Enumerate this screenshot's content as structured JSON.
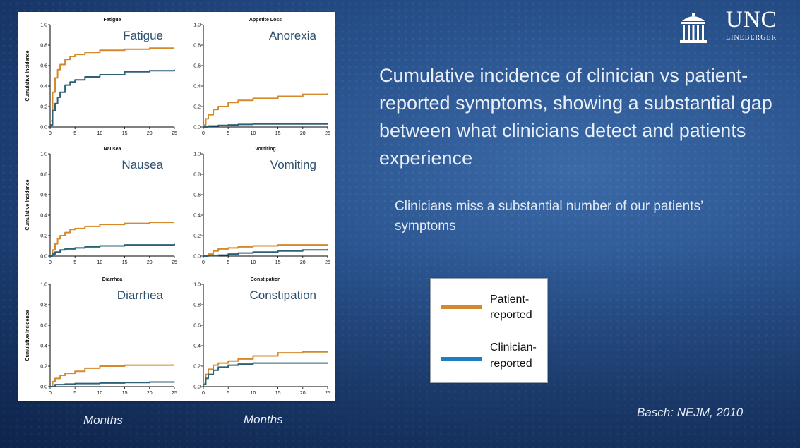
{
  "slide": {
    "title": "Cumulative incidence of clinician vs patient-reported symptoms, showing a substantial gap between what clinicians detect and patients experience",
    "subtitle": "Clinicians miss a substantial number of our patients’ symptoms",
    "citation": "Basch: NEJM, 2010",
    "months_label_left": "Months",
    "months_label_right": "Months"
  },
  "logo": {
    "name": "UNC",
    "subtitle": "LINEBERGER"
  },
  "legend": {
    "patient_label_line1": "Patient-",
    "patient_label_line2": "reported",
    "clinician_label_line1": "Clinician-",
    "clinician_label_line2": "reported"
  },
  "colors": {
    "patient": "#d48a2c",
    "clinician": "#2d6179",
    "panel_title": "#2c4e6b",
    "legend_clinician": "#1e7fc0"
  },
  "chart_data": [
    {
      "type": "line",
      "small_title": "Fatigue",
      "title": "Fatigue",
      "ylabel": "Cumulative Incidence",
      "xlim": [
        0,
        25
      ],
      "ylim": [
        0,
        1.0
      ],
      "xticks": [
        "0",
        "5",
        "10",
        "15",
        "20",
        "25"
      ],
      "yticks": [
        "0.0",
        "0.2",
        "0.4",
        "0.6",
        "0.8",
        "1.0"
      ],
      "series": [
        {
          "name": "Patient-reported",
          "x": [
            0,
            0.5,
            1,
            1.5,
            2,
            3,
            4,
            5,
            7,
            10,
            15,
            20,
            25
          ],
          "values": [
            0.06,
            0.34,
            0.48,
            0.56,
            0.61,
            0.66,
            0.69,
            0.71,
            0.73,
            0.75,
            0.76,
            0.77,
            0.77
          ]
        },
        {
          "name": "Clinician-reported",
          "x": [
            0,
            0.5,
            1,
            1.5,
            2,
            3,
            4,
            5,
            7,
            10,
            15,
            20,
            25
          ],
          "values": [
            0.02,
            0.16,
            0.23,
            0.29,
            0.34,
            0.41,
            0.44,
            0.46,
            0.49,
            0.51,
            0.54,
            0.55,
            0.56
          ]
        }
      ]
    },
    {
      "type": "line",
      "small_title": "Appetite Loss",
      "title": "Anorexia",
      "ylabel": "",
      "xlim": [
        0,
        25
      ],
      "ylim": [
        0,
        1.0
      ],
      "xticks": [
        "0",
        "5",
        "10",
        "15",
        "20",
        "25"
      ],
      "yticks": [
        "0.0",
        "0.2",
        "0.4",
        "0.6",
        "0.8",
        "1.0"
      ],
      "series": [
        {
          "name": "Patient-reported",
          "x": [
            0,
            0.5,
            1,
            2,
            3,
            5,
            7,
            10,
            15,
            20,
            25
          ],
          "values": [
            0.02,
            0.08,
            0.12,
            0.17,
            0.2,
            0.24,
            0.26,
            0.28,
            0.3,
            0.32,
            0.33
          ]
        },
        {
          "name": "Clinician-reported",
          "x": [
            0,
            1,
            3,
            5,
            7,
            10,
            15,
            20,
            25
          ],
          "values": [
            0.0,
            0.01,
            0.015,
            0.02,
            0.025,
            0.03,
            0.03,
            0.03,
            0.03
          ]
        }
      ]
    },
    {
      "type": "line",
      "small_title": "Nausea",
      "title": "Nausea",
      "ylabel": "Cumulative Incidence",
      "xlim": [
        0,
        25
      ],
      "ylim": [
        0,
        1.0
      ],
      "xticks": [
        "0",
        "5",
        "10",
        "15",
        "20",
        "25"
      ],
      "yticks": [
        "0.0",
        "0.2",
        "0.4",
        "0.6",
        "0.8",
        "1.0"
      ],
      "series": [
        {
          "name": "Patient-reported",
          "x": [
            0,
            0.5,
            1,
            1.5,
            2,
            3,
            4,
            5,
            7,
            10,
            15,
            20,
            25
          ],
          "values": [
            0.0,
            0.06,
            0.12,
            0.17,
            0.2,
            0.23,
            0.26,
            0.27,
            0.29,
            0.31,
            0.32,
            0.33,
            0.33
          ]
        },
        {
          "name": "Clinician-reported",
          "x": [
            0,
            0.5,
            1,
            2,
            3,
            5,
            7,
            10,
            15,
            20,
            25
          ],
          "values": [
            0.0,
            0.02,
            0.04,
            0.06,
            0.07,
            0.08,
            0.09,
            0.1,
            0.11,
            0.11,
            0.12
          ]
        }
      ]
    },
    {
      "type": "line",
      "small_title": "Vomiting",
      "title": "Vomiting",
      "ylabel": "",
      "xlim": [
        0,
        25
      ],
      "ylim": [
        0,
        1.0
      ],
      "xticks": [
        "0",
        "5",
        "10",
        "15",
        "20",
        "25"
      ],
      "yticks": [
        "0.0",
        "0.2",
        "0.4",
        "0.6",
        "0.8",
        "1.0"
      ],
      "series": [
        {
          "name": "Patient-reported",
          "x": [
            0,
            1,
            2,
            3,
            5,
            7,
            10,
            15,
            20,
            25
          ],
          "values": [
            0.0,
            0.02,
            0.05,
            0.07,
            0.08,
            0.09,
            0.1,
            0.11,
            0.11,
            0.11
          ]
        },
        {
          "name": "Clinician-reported",
          "x": [
            0,
            1,
            3,
            5,
            7,
            10,
            15,
            20,
            25
          ],
          "values": [
            0.0,
            0.005,
            0.01,
            0.02,
            0.03,
            0.04,
            0.05,
            0.06,
            0.07
          ]
        }
      ]
    },
    {
      "type": "line",
      "small_title": "Diarrhea",
      "title": "Diarrhea",
      "ylabel": "Cumulative Incidence",
      "xlim": [
        0,
        25
      ],
      "ylim": [
        0,
        1.0
      ],
      "xticks": [
        "0",
        "5",
        "10",
        "15",
        "20",
        "25"
      ],
      "yticks": [
        "0.0",
        "0.2",
        "0.4",
        "0.6",
        "0.8",
        "1.0"
      ],
      "series": [
        {
          "name": "Patient-reported",
          "x": [
            0,
            0.5,
            1,
            2,
            3,
            5,
            7,
            10,
            15,
            20,
            25
          ],
          "values": [
            0.0,
            0.05,
            0.08,
            0.11,
            0.13,
            0.15,
            0.18,
            0.2,
            0.21,
            0.21,
            0.21
          ]
        },
        {
          "name": "Clinician-reported",
          "x": [
            0,
            1,
            3,
            5,
            7,
            10,
            15,
            20,
            25
          ],
          "values": [
            0.0,
            0.02,
            0.025,
            0.03,
            0.03,
            0.035,
            0.04,
            0.045,
            0.05
          ]
        }
      ]
    },
    {
      "type": "line",
      "small_title": "Constipation",
      "title": "Constipation",
      "ylabel": "",
      "xlim": [
        0,
        25
      ],
      "ylim": [
        0,
        1.0
      ],
      "xticks": [
        "0",
        "5",
        "10",
        "15",
        "20",
        "25"
      ],
      "yticks": [
        "0.0",
        "0.2",
        "0.4",
        "0.6",
        "0.8",
        "1.0"
      ],
      "series": [
        {
          "name": "Patient-reported",
          "x": [
            0,
            0.5,
            1,
            2,
            3,
            5,
            7,
            10,
            15,
            20,
            25
          ],
          "values": [
            0.03,
            0.12,
            0.17,
            0.21,
            0.23,
            0.25,
            0.27,
            0.3,
            0.33,
            0.34,
            0.34
          ]
        },
        {
          "name": "Clinician-reported",
          "x": [
            0,
            0.5,
            1,
            2,
            3,
            5,
            7,
            10,
            15,
            20,
            25
          ],
          "values": [
            0.02,
            0.08,
            0.12,
            0.16,
            0.19,
            0.21,
            0.22,
            0.23,
            0.23,
            0.23,
            0.23
          ]
        }
      ]
    }
  ]
}
